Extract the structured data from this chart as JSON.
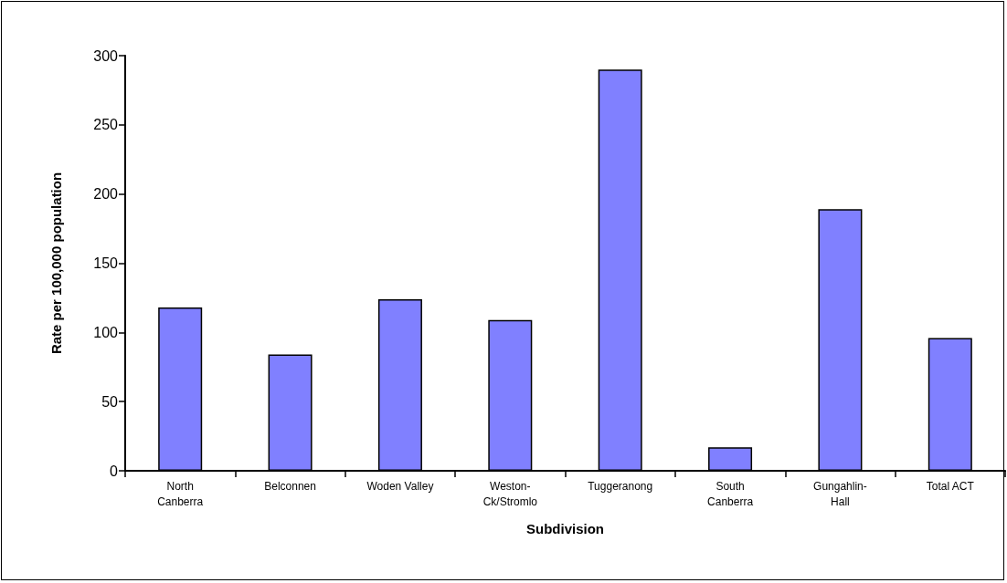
{
  "chart_data": {
    "type": "bar",
    "xlabel": "Subdivision",
    "ylabel": "Rate per 100,000 population",
    "categories": [
      "North\nCanberra",
      "Belconnen",
      "Woden Valley",
      "Weston-\nCk/Stromlo",
      "Tuggeranong",
      "South\nCanberra",
      "Gungahlin-\nHall",
      "Total ACT"
    ],
    "values": [
      118,
      84,
      124,
      109,
      290,
      17,
      189,
      96
    ],
    "color": "#8080ff",
    "ylim": [
      0,
      300
    ],
    "yticks": [
      0,
      50,
      100,
      150,
      200,
      250,
      300
    ],
    "grid": false
  }
}
